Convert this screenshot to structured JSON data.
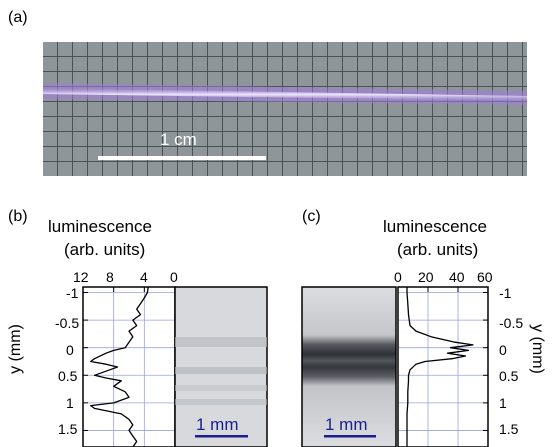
{
  "panels": {
    "a": {
      "label": "(a)",
      "scalebar": "1 cm"
    },
    "b": {
      "label": "(b)",
      "title_line1": "luminescence",
      "title_line2": "(arb. units)",
      "x_ticks": [
        "12",
        "8",
        "4",
        "0"
      ],
      "y_label": "y (mm)",
      "scalebar": "1 mm"
    },
    "c": {
      "label": "(c)",
      "title_line1": "luminescence",
      "title_line2": "(arb. units)",
      "x_ticks": [
        "0",
        "20",
        "40",
        "60"
      ],
      "y_label": "y (mm)",
      "scalebar": "1 mm"
    },
    "y_ticks": [
      "-1",
      "-0.5",
      "0",
      "0.5",
      "1",
      "1.5"
    ]
  },
  "chart_data": [
    {
      "type": "line",
      "title": "luminescence (arb. units)",
      "ylabel": "y (mm)",
      "xlim": [
        12,
        0
      ],
      "ylim": [
        -1.1,
        1.8
      ],
      "x_reversed": true,
      "series": [
        {
          "y": [
            -1.1,
            -1.0,
            -0.9,
            -0.8,
            -0.7,
            -0.6,
            -0.5,
            -0.4,
            -0.3,
            -0.2,
            -0.1,
            0.0,
            0.05,
            0.1,
            0.2,
            0.25,
            0.3,
            0.35,
            0.4,
            0.5,
            0.55,
            0.6,
            0.7,
            0.8,
            0.9,
            1.0,
            1.05,
            1.1,
            1.2,
            1.3,
            1.4,
            1.5,
            1.6,
            1.7,
            1.8
          ],
          "x": [
            3.5,
            3.6,
            4.0,
            4.5,
            5.0,
            4.5,
            5.5,
            5.0,
            6.0,
            5.5,
            6.0,
            6.5,
            8.0,
            9.0,
            10.5,
            11.0,
            9.0,
            7.5,
            8.5,
            10.5,
            9.0,
            7.0,
            8.0,
            6.5,
            6.0,
            8.0,
            11.0,
            10.5,
            7.0,
            6.0,
            5.5,
            6.0,
            5.5,
            5.0,
            5.5
          ]
        }
      ]
    },
    {
      "type": "line",
      "title": "luminescence (arb. units)",
      "ylabel": "y (mm)",
      "xlim": [
        0,
        60
      ],
      "ylim": [
        -1.1,
        1.8
      ],
      "series": [
        {
          "y": [
            -1.1,
            -1.0,
            -0.8,
            -0.6,
            -0.4,
            -0.3,
            -0.2,
            -0.1,
            -0.05,
            0.0,
            0.05,
            0.1,
            0.15,
            0.2,
            0.25,
            0.3,
            0.4,
            0.5,
            0.6,
            0.8,
            1.0,
            1.2,
            1.4,
            1.6,
            1.8
          ],
          "x": [
            6,
            6,
            6.5,
            7,
            8,
            12,
            22,
            38,
            50,
            35,
            47,
            33,
            45,
            36,
            18,
            12,
            8,
            7,
            7,
            6.5,
            6.5,
            6,
            6,
            6,
            6
          ]
        }
      ]
    }
  ]
}
